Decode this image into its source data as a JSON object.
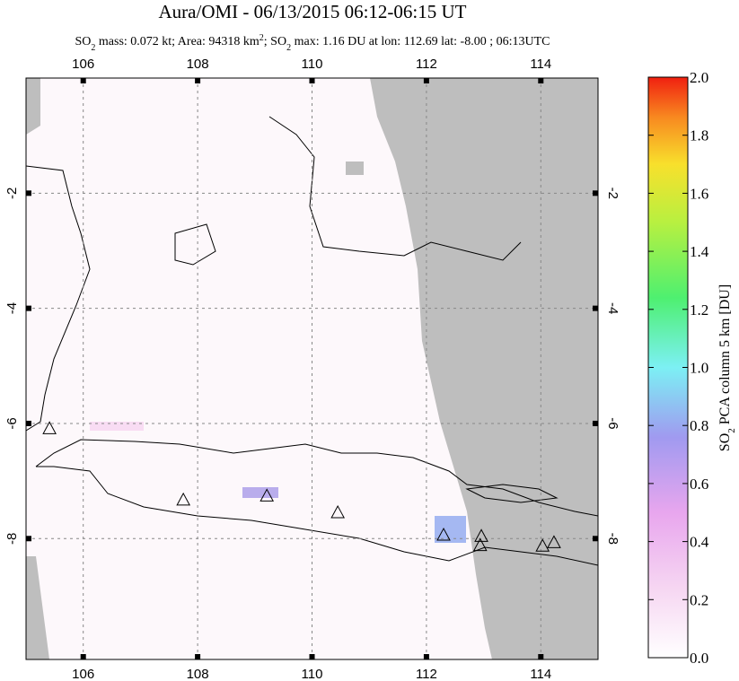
{
  "map": {
    "title": "Aura/OMI - 06/13/2015 06:12-06:15 UT",
    "subtitle": [
      "SO",
      "2",
      " mass: 0.072 kt; Area: 94318 km",
      "2",
      "; SO",
      "2",
      " max: 1.16 DU at lon: 112.69 lat: -8.00 ; 06:13UTC"
    ],
    "lon_range": [
      105,
      115
    ],
    "lat_range": [
      0,
      -10.1
    ],
    "lon_ticks": [
      106,
      108,
      110,
      112,
      114
    ],
    "lat_ticks": [
      -2,
      -4,
      -6,
      -8
    ],
    "volcanoes": [
      {
        "lon": 105.41,
        "lat": -6.1
      },
      {
        "lon": 107.75,
        "lat": -7.34
      },
      {
        "lon": 109.21,
        "lat": -7.27
      },
      {
        "lon": 110.45,
        "lat": -7.56
      },
      {
        "lon": 112.3,
        "lat": -7.95
      },
      {
        "lon": 112.96,
        "lat": -7.97
      },
      {
        "lon": 112.94,
        "lat": -8.13
      },
      {
        "lon": 114.03,
        "lat": -8.14
      },
      {
        "lon": 114.23,
        "lat": -8.08
      }
    ]
  },
  "colorbar": {
    "label": [
      "SO",
      "2",
      " PCA column 5 km [DU]"
    ],
    "range": [
      0,
      2
    ],
    "ticks": [
      {
        "value": 0,
        "label": "0.0"
      },
      {
        "value": 0.2,
        "label": "0.2"
      },
      {
        "value": 0.4,
        "label": "0.4"
      },
      {
        "value": 0.6,
        "label": "0.6"
      },
      {
        "value": 0.8,
        "label": "0.8"
      },
      {
        "value": 1,
        "label": "1.0"
      },
      {
        "value": 1.2,
        "label": "1.2"
      },
      {
        "value": 1.4,
        "label": "1.4"
      },
      {
        "value": 1.6,
        "label": "1.6"
      },
      {
        "value": 1.8,
        "label": "1.8"
      },
      {
        "value": 2,
        "label": "2.0"
      }
    ]
  }
}
